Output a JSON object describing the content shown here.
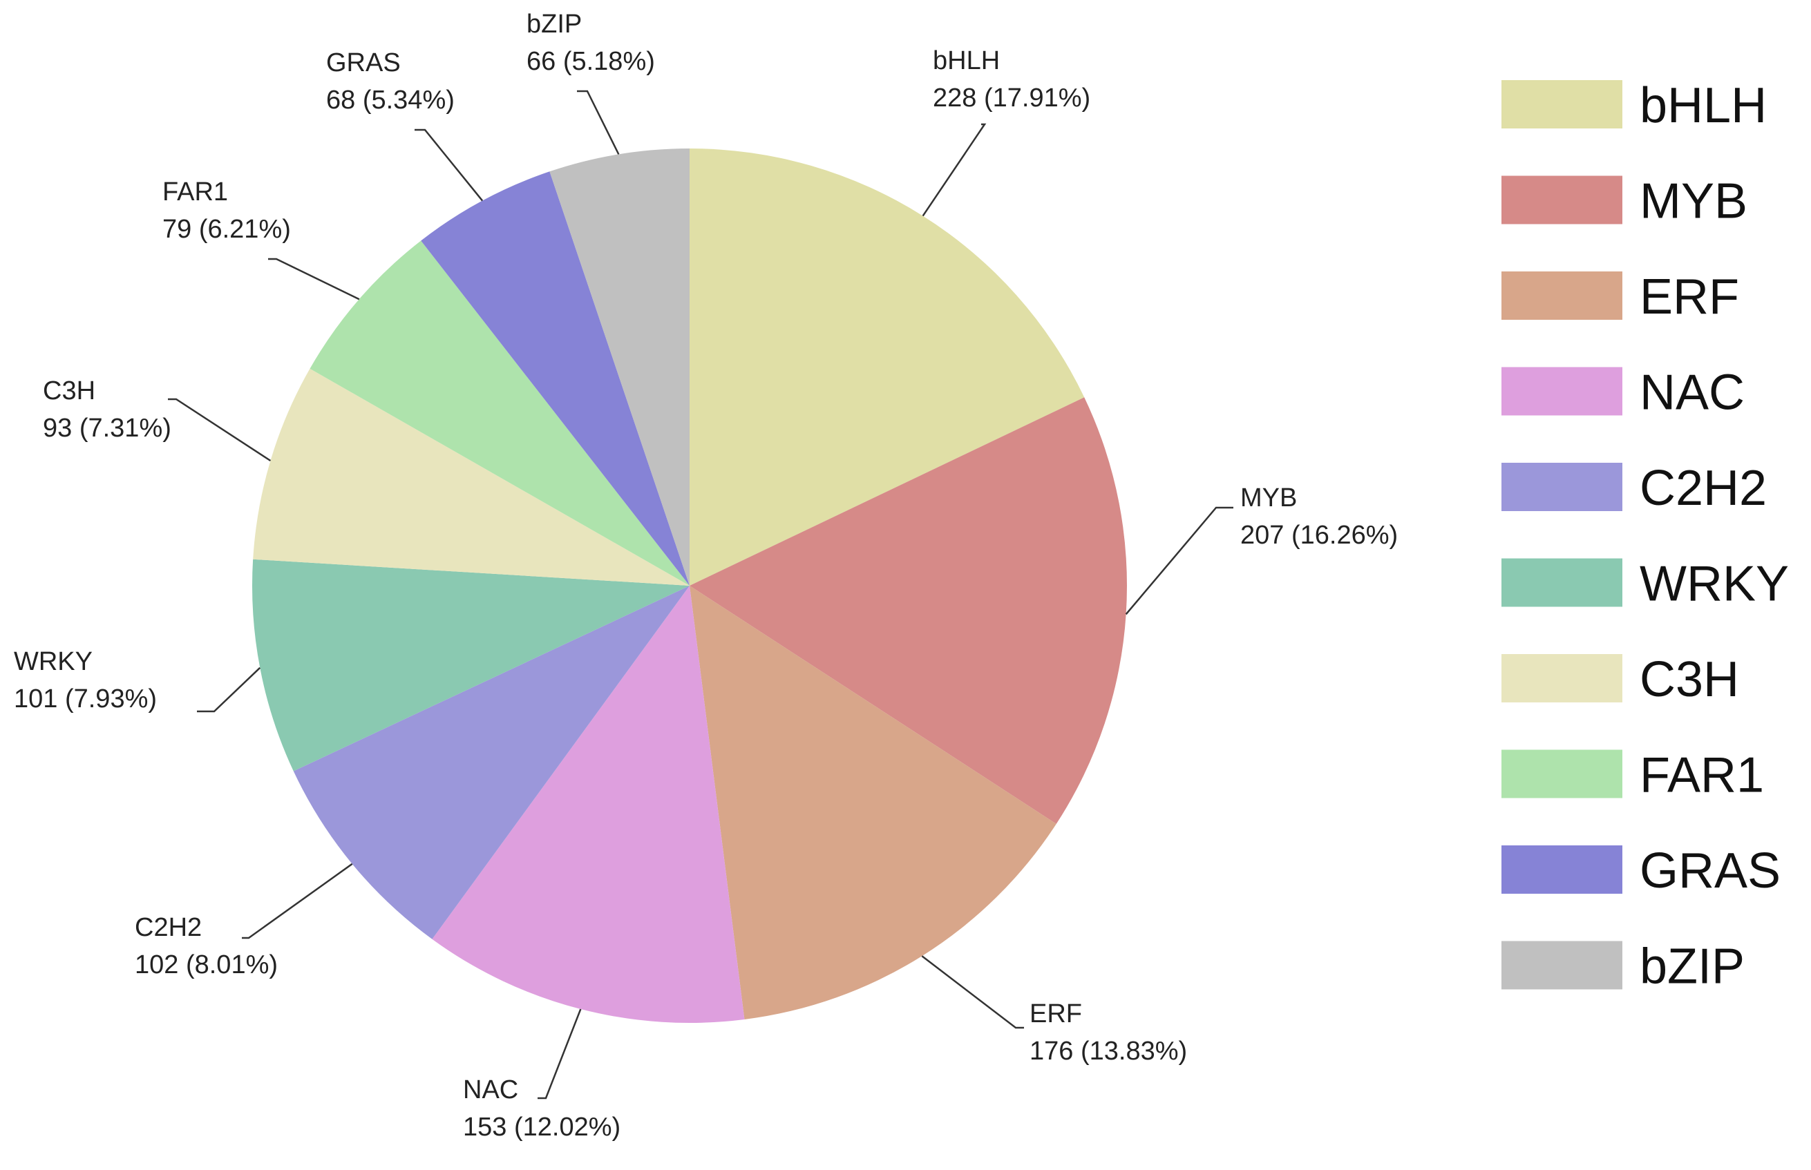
{
  "chart_data": {
    "type": "pie",
    "start_angle_deg": 0,
    "direction": "clockwise",
    "legend_position": "right",
    "slices": [
      {
        "name": "bHLH",
        "value": 228,
        "percent": "17.91%",
        "label": "228 (17.91%)",
        "color": "#e0dfa6"
      },
      {
        "name": "MYB",
        "value": 207,
        "percent": "16.26%",
        "label": "207 (16.26%)",
        "color": "#d68a88"
      },
      {
        "name": "ERF",
        "value": 176,
        "percent": "13.83%",
        "label": "176 (13.83%)",
        "color": "#d8a68a"
      },
      {
        "name": "NAC",
        "value": 153,
        "percent": "12.02%",
        "label": "153 (12.02%)",
        "color": "#de9fde"
      },
      {
        "name": "C2H2",
        "value": 102,
        "percent": "8.01%",
        "label": "102 (8.01%)",
        "color": "#9b97da"
      },
      {
        "name": "WRKY",
        "value": 101,
        "percent": "7.93%",
        "label": "101 (7.93%)",
        "color": "#8ac9b1"
      },
      {
        "name": "C3H",
        "value": 93,
        "percent": "7.31%",
        "label": "93 (7.31%)",
        "color": "#e8e5bd"
      },
      {
        "name": "FAR1",
        "value": 79,
        "percent": "6.21%",
        "label": "79 (6.21%)",
        "color": "#aee3ac"
      },
      {
        "name": "GRAS",
        "value": 68,
        "percent": "5.34%",
        "label": "68 (5.34%)",
        "color": "#8683d6"
      },
      {
        "name": "bZIP",
        "value": 66,
        "percent": "5.18%",
        "label": "66 (5.18%)",
        "color": "#c0c0c0"
      }
    ],
    "legend": [
      "bHLH",
      "MYB",
      "ERF",
      "NAC",
      "C2H2",
      "WRKY",
      "C3H",
      "FAR1",
      "GRAS",
      "bZIP"
    ]
  }
}
